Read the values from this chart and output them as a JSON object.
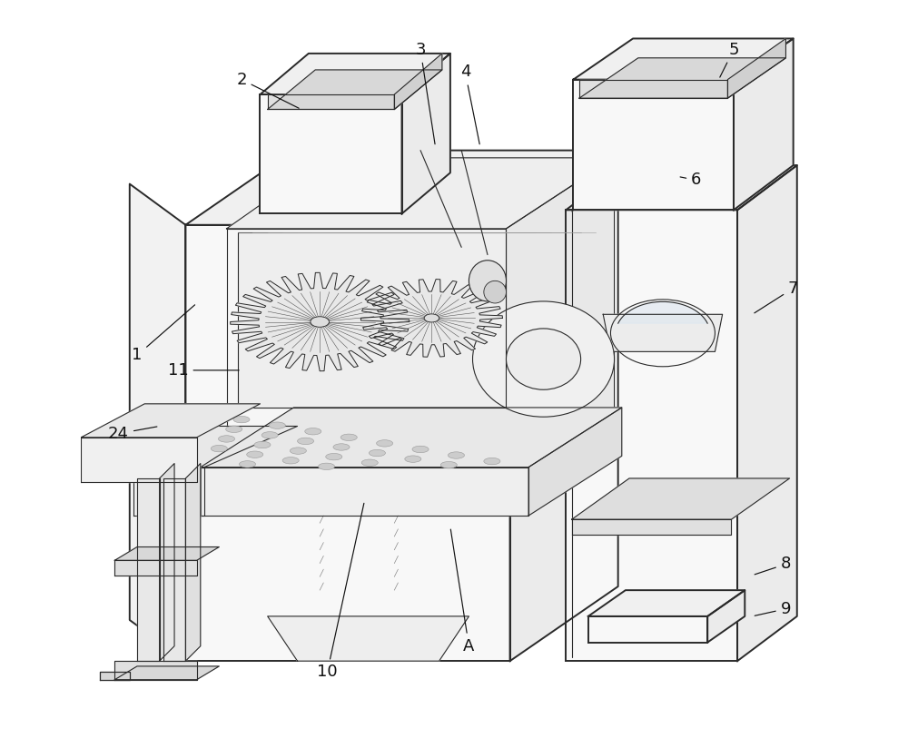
{
  "bg_color": "#ffffff",
  "lc": "#2a2a2a",
  "lc_light": "#666666",
  "lw_main": 1.4,
  "lw_thin": 0.8,
  "fill_front": "#f8f8f8",
  "fill_top": "#f0f0f0",
  "fill_side": "#ebebeb",
  "fill_inner": "#f4f4f4",
  "fill_dark": "#e0e0e0",
  "label_fontsize": 13,
  "annotation_color": "#111111",
  "labels": {
    "1": [
      0.075,
      0.525,
      0.155,
      0.595
    ],
    "2": [
      0.215,
      0.895,
      0.295,
      0.855
    ],
    "3": [
      0.455,
      0.935,
      0.475,
      0.805
    ],
    "4": [
      0.515,
      0.905,
      0.535,
      0.805
    ],
    "5": [
      0.875,
      0.935,
      0.855,
      0.895
    ],
    "6": [
      0.825,
      0.76,
      0.8,
      0.765
    ],
    "7": [
      0.955,
      0.615,
      0.9,
      0.58
    ],
    "8": [
      0.945,
      0.245,
      0.9,
      0.23
    ],
    "9": [
      0.945,
      0.185,
      0.9,
      0.175
    ],
    "10": [
      0.33,
      0.1,
      0.38,
      0.33
    ],
    "11": [
      0.13,
      0.505,
      0.215,
      0.505
    ],
    "24": [
      0.05,
      0.42,
      0.105,
      0.43
    ],
    "A": [
      0.52,
      0.135,
      0.495,
      0.295
    ]
  }
}
